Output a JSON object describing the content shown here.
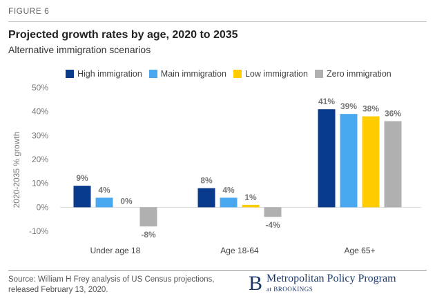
{
  "figure_label": "FIGURE 6",
  "source": {
    "line1": "Source: William H Frey analysis of US Census projections,",
    "line2": "released February 13, 2020."
  },
  "logo": {
    "mark": "B",
    "name": "Metropolitan Policy Program",
    "at": "at",
    "org": "BROOKINGS"
  },
  "colors": {
    "high": "#0a3a8c",
    "main": "#4aa8f0",
    "low": "#ffcc00",
    "zero": "#b0b0b0"
  },
  "chart_data": {
    "type": "bar",
    "title": "Projected growth rates by age, 2020 to 2035",
    "subtitle": "Alternative immigration scenarios",
    "xlabel": "",
    "ylabel": "2020-2035 % growth",
    "ylim": [
      -10,
      50
    ],
    "yticks": [
      -10,
      0,
      10,
      20,
      30,
      40,
      50
    ],
    "ytick_labels": [
      "-10%",
      "0%",
      "10%",
      "20%",
      "30%",
      "40%",
      "50%"
    ],
    "categories": [
      "Under age 18",
      "Age 18-64",
      "Age 65+"
    ],
    "series": [
      {
        "name": "High immigration",
        "key": "high",
        "values": [
          9,
          8,
          41
        ],
        "labels": [
          "9%",
          "8%",
          "41%"
        ]
      },
      {
        "name": "Main immigration",
        "key": "main",
        "values": [
          4,
          4,
          39
        ],
        "labels": [
          "4%",
          "4%",
          "39%"
        ]
      },
      {
        "name": "Low immigration",
        "key": "low",
        "values": [
          0,
          1,
          38
        ],
        "labels": [
          "0%",
          "1%",
          "38%"
        ]
      },
      {
        "name": "Zero immigration",
        "key": "zero",
        "values": [
          -8,
          -4,
          36
        ],
        "labels": [
          "-8%",
          "-4%",
          "36%"
        ]
      }
    ],
    "legend_position": "top"
  }
}
